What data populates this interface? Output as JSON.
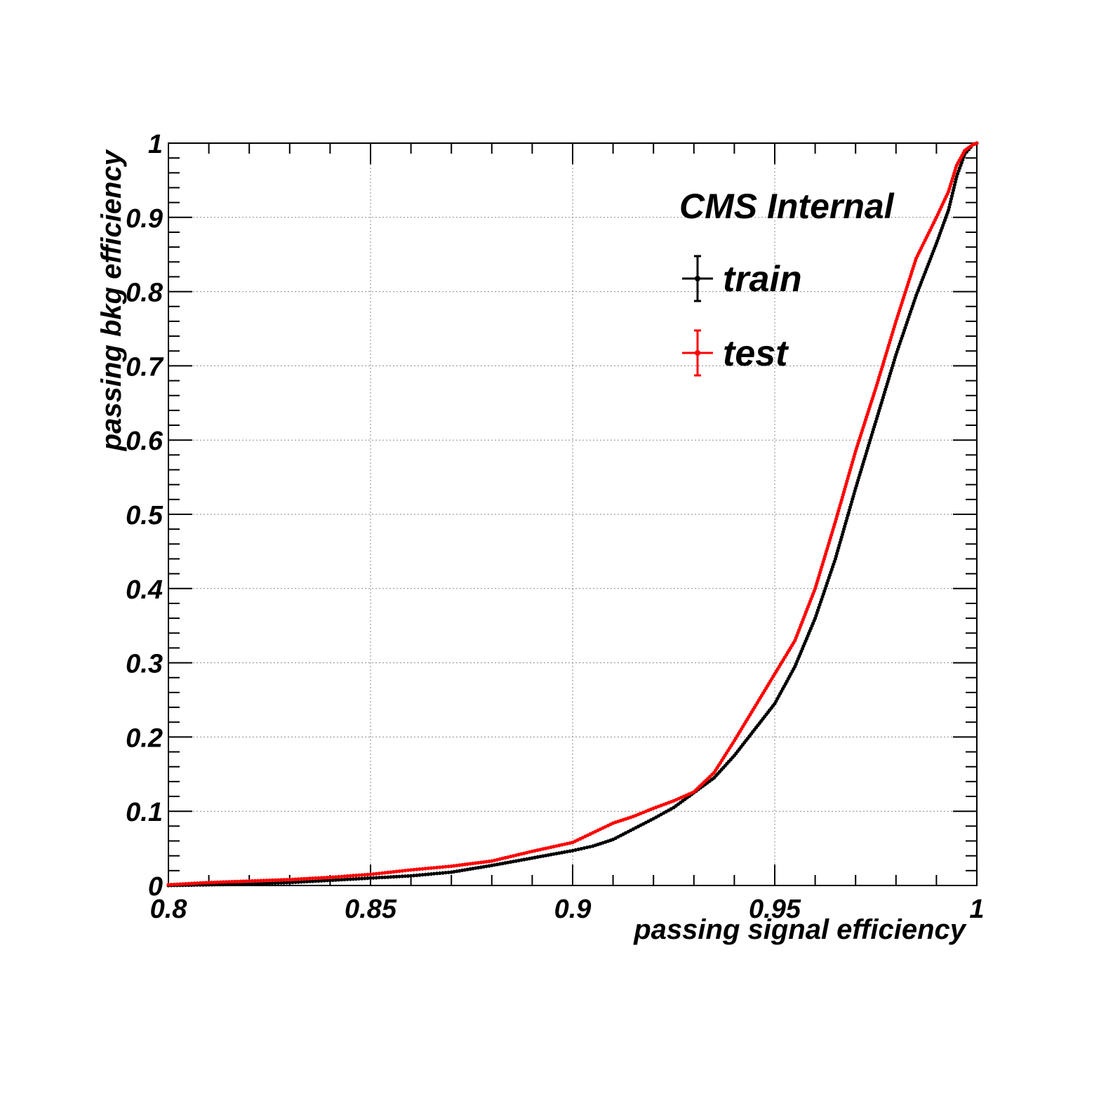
{
  "chart_data": {
    "type": "line",
    "title": "",
    "annotation": "CMS Internal",
    "xlabel": "passing signal efficiency",
    "ylabel": "passing bkg efficiency",
    "xlim": [
      0.8,
      1.0
    ],
    "ylim": [
      0.0,
      1.0
    ],
    "grid": true,
    "legend_position": "top-right",
    "x_ticks": [
      {
        "value": 0.8,
        "label": "0.8"
      },
      {
        "value": 0.85,
        "label": "0.85"
      },
      {
        "value": 0.9,
        "label": "0.9"
      },
      {
        "value": 0.95,
        "label": "0.95"
      },
      {
        "value": 1.0,
        "label": "1"
      }
    ],
    "y_ticks": [
      {
        "value": 0.0,
        "label": "0"
      },
      {
        "value": 0.1,
        "label": "0.1"
      },
      {
        "value": 0.2,
        "label": "0.2"
      },
      {
        "value": 0.3,
        "label": "0.3"
      },
      {
        "value": 0.4,
        "label": "0.4"
      },
      {
        "value": 0.5,
        "label": "0.5"
      },
      {
        "value": 0.6,
        "label": "0.6"
      },
      {
        "value": 0.7,
        "label": "0.7"
      },
      {
        "value": 0.8,
        "label": "0.8"
      },
      {
        "value": 0.9,
        "label": "0.9"
      },
      {
        "value": 1.0,
        "label": "1"
      }
    ],
    "series": [
      {
        "name": "train",
        "color": "#000000",
        "x": [
          0.8,
          0.81,
          0.82,
          0.83,
          0.84,
          0.85,
          0.86,
          0.87,
          0.88,
          0.89,
          0.9,
          0.905,
          0.91,
          0.915,
          0.92,
          0.925,
          0.93,
          0.935,
          0.94,
          0.945,
          0.95,
          0.955,
          0.96,
          0.965,
          0.97,
          0.975,
          0.98,
          0.985,
          0.99,
          0.993,
          0.995,
          0.997,
          0.999,
          1.0
        ],
        "y": [
          0.0,
          0.001,
          0.002,
          0.004,
          0.007,
          0.01,
          0.013,
          0.018,
          0.027,
          0.037,
          0.047,
          0.053,
          0.062,
          0.076,
          0.09,
          0.105,
          0.125,
          0.145,
          0.175,
          0.21,
          0.245,
          0.295,
          0.36,
          0.44,
          0.535,
          0.625,
          0.715,
          0.795,
          0.865,
          0.91,
          0.955,
          0.985,
          0.998,
          1.0
        ]
      },
      {
        "name": "test",
        "color": "#ff0000",
        "x": [
          0.8,
          0.81,
          0.82,
          0.83,
          0.84,
          0.85,
          0.86,
          0.87,
          0.88,
          0.89,
          0.9,
          0.905,
          0.91,
          0.915,
          0.92,
          0.925,
          0.93,
          0.935,
          0.94,
          0.945,
          0.95,
          0.955,
          0.96,
          0.965,
          0.97,
          0.975,
          0.98,
          0.985,
          0.99,
          0.993,
          0.995,
          0.997,
          0.999,
          1.0
        ],
        "y": [
          0.001,
          0.004,
          0.006,
          0.008,
          0.011,
          0.015,
          0.021,
          0.026,
          0.033,
          0.046,
          0.058,
          0.071,
          0.084,
          0.093,
          0.104,
          0.114,
          0.126,
          0.152,
          0.195,
          0.24,
          0.285,
          0.33,
          0.4,
          0.49,
          0.585,
          0.67,
          0.76,
          0.845,
          0.9,
          0.935,
          0.97,
          0.99,
          0.998,
          1.0
        ]
      }
    ]
  }
}
